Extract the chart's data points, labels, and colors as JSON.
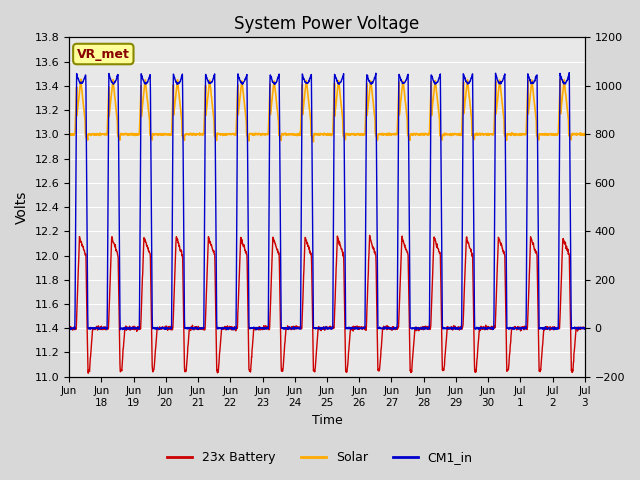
{
  "title": "System Power Voltage",
  "xlabel": "Time",
  "ylabel_left": "Volts",
  "ylim_left": [
    11.0,
    13.8
  ],
  "ylim_right": [
    -200,
    1200
  ],
  "yticks_left": [
    11.0,
    11.2,
    11.4,
    11.6,
    11.8,
    12.0,
    12.2,
    12.4,
    12.6,
    12.8,
    13.0,
    13.2,
    13.4,
    13.6,
    13.8
  ],
  "yticks_right": [
    -200,
    0,
    200,
    400,
    600,
    800,
    1000,
    1200
  ],
  "xtick_labels": [
    "Jun\n18",
    "Jun\n19",
    "Jun\n20",
    "Jun\n21",
    "Jun\n22",
    "Jun\n23",
    "Jun\n24",
    "Jun\n25",
    "Jun\n26",
    "Jun\n27",
    "Jun\n28",
    "Jun\n29",
    "Jun\n30",
    "Jul\n1",
    "Jul\n2",
    "Jul\n3"
  ],
  "bg_color": "#d8d8d8",
  "plot_bg_color": "#e8e8e8",
  "grid_color": "#ffffff",
  "colors": {
    "battery": "#cc0000",
    "solar": "#ffaa00",
    "cm1": "#0000cc"
  },
  "legend_labels": [
    "23x Battery",
    "Solar",
    "CM1_in"
  ],
  "annotation_text": "VR_met",
  "annotation_color": "#880000",
  "annotation_bg": "#ffff99",
  "annotation_border": "#888800"
}
